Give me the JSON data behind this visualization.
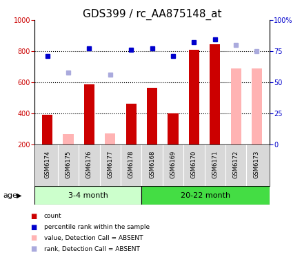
{
  "title": "GDS399 / rc_AA875148_at",
  "samples": [
    "GSM6174",
    "GSM6175",
    "GSM6176",
    "GSM6177",
    "GSM6178",
    "GSM6168",
    "GSM6169",
    "GSM6170",
    "GSM6171",
    "GSM6172",
    "GSM6173"
  ],
  "bar_values": [
    390,
    null,
    585,
    null,
    460,
    565,
    400,
    810,
    845,
    null,
    null
  ],
  "bar_absent_values": [
    null,
    265,
    null,
    270,
    null,
    null,
    null,
    null,
    null,
    690,
    690
  ],
  "dot_values": [
    770,
    null,
    820,
    null,
    810,
    820,
    770,
    860,
    875,
    null,
    null
  ],
  "dot_absent_values": [
    null,
    660,
    null,
    650,
    null,
    null,
    null,
    null,
    null,
    840,
    800
  ],
  "ylim_left": [
    200,
    1000
  ],
  "ylim_right": [
    0,
    100
  ],
  "yticks_left": [
    200,
    400,
    600,
    800,
    1000
  ],
  "yticks_right": [
    0,
    25,
    50,
    75,
    100
  ],
  "hlines": [
    400,
    600,
    800
  ],
  "bar_color": "#cc0000",
  "bar_absent_color": "#ffb3b3",
  "dot_color": "#0000cc",
  "dot_absent_color": "#aaaadd",
  "group_color_1": "#ccffcc",
  "group_color_2": "#44dd44",
  "title_fontsize": 11,
  "tick_fontsize": 7,
  "label_fontsize": 8,
  "bar_width": 0.5,
  "group_label_1": "3-4 month",
  "group_label_2": "20-22 month",
  "age_label": "age",
  "legend_items": [
    {
      "color": "#cc0000",
      "label": "count"
    },
    {
      "color": "#0000cc",
      "label": "percentile rank within the sample"
    },
    {
      "color": "#ffb3b3",
      "label": "value, Detection Call = ABSENT"
    },
    {
      "color": "#aaaadd",
      "label": "rank, Detection Call = ABSENT"
    }
  ]
}
